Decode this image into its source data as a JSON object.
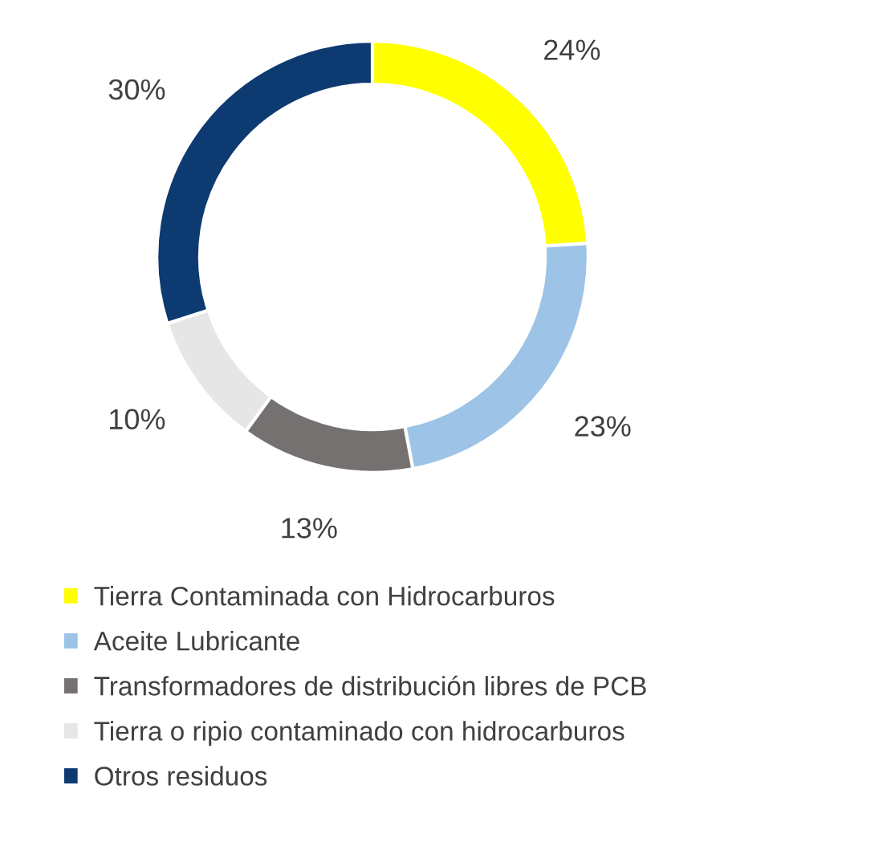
{
  "chart_data": {
    "type": "donut",
    "categories": [
      "Tierra Contaminada con Hidrocarburos",
      "Aceite Lubricante",
      "Transformadores de distribución libres de PCB",
      "Tierra o ripio contaminado con hidrocarburos",
      "Otros residuos"
    ],
    "values": [
      24,
      23,
      13,
      10,
      30
    ],
    "value_labels": [
      "24%",
      "23%",
      "13%",
      "10%",
      "30%"
    ],
    "colors": [
      "#ffff00",
      "#9dc3e6",
      "#767171",
      "#e7e6e6",
      "#0e3a72"
    ],
    "legend": "bottom"
  }
}
